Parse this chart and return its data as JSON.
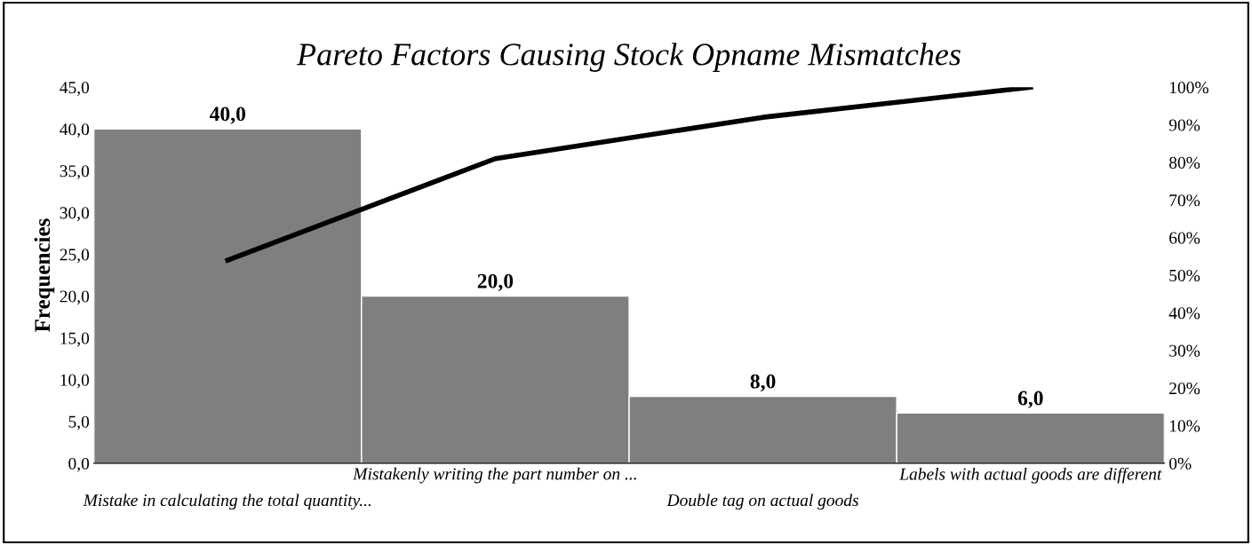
{
  "chart_data": {
    "type": "bar",
    "title": "Pareto Factors Causing Stock Opname Mismatches",
    "ylabel": "Frequencies",
    "categories": [
      "Mistake in calculating the total quantity...",
      "Mistakenly writing the part number on ...",
      "Double tag on actual goods",
      "Labels with actual goods are different"
    ],
    "series": [
      {
        "color": "#7f7f7f",
        "values": [
          40,
          20,
          8,
          6
        ],
        "value_labels": [
          "40,0",
          "20,0",
          "8,0",
          "6,0"
        ]
      },
      {
        "type": "line",
        "axis": "y2",
        "color": "#000000",
        "values": [
          54,
          81,
          92,
          100
        ]
      }
    ],
    "ylim": [
      0,
      45
    ],
    "yticks": [
      {
        "value": 0,
        "label": "0,0"
      },
      {
        "value": 5,
        "label": "5,0"
      },
      {
        "value": 10,
        "label": "10,0"
      },
      {
        "value": 15,
        "label": "15,0"
      },
      {
        "value": 20,
        "label": "20,0"
      },
      {
        "value": 25,
        "label": "25,0"
      },
      {
        "value": 30,
        "label": "30,0"
      },
      {
        "value": 35,
        "label": "35,0"
      },
      {
        "value": 40,
        "label": "40,0"
      },
      {
        "value": 45,
        "label": "45,0"
      }
    ],
    "y2lim": [
      0,
      100
    ],
    "y2ticks": [
      {
        "value": 0,
        "label": "0%"
      },
      {
        "value": 10,
        "label": "10%"
      },
      {
        "value": 20,
        "label": "20%"
      },
      {
        "value": 30,
        "label": "30%"
      },
      {
        "value": 40,
        "label": "40%"
      },
      {
        "value": 50,
        "label": "50%"
      },
      {
        "value": 60,
        "label": "60%"
      },
      {
        "value": 70,
        "label": "70%"
      },
      {
        "value": 80,
        "label": "80%"
      },
      {
        "value": 90,
        "label": "90%"
      },
      {
        "value": 100,
        "label": "100%"
      }
    ],
    "grid": false,
    "legend": false,
    "marker": "none",
    "line_style": "solid"
  }
}
